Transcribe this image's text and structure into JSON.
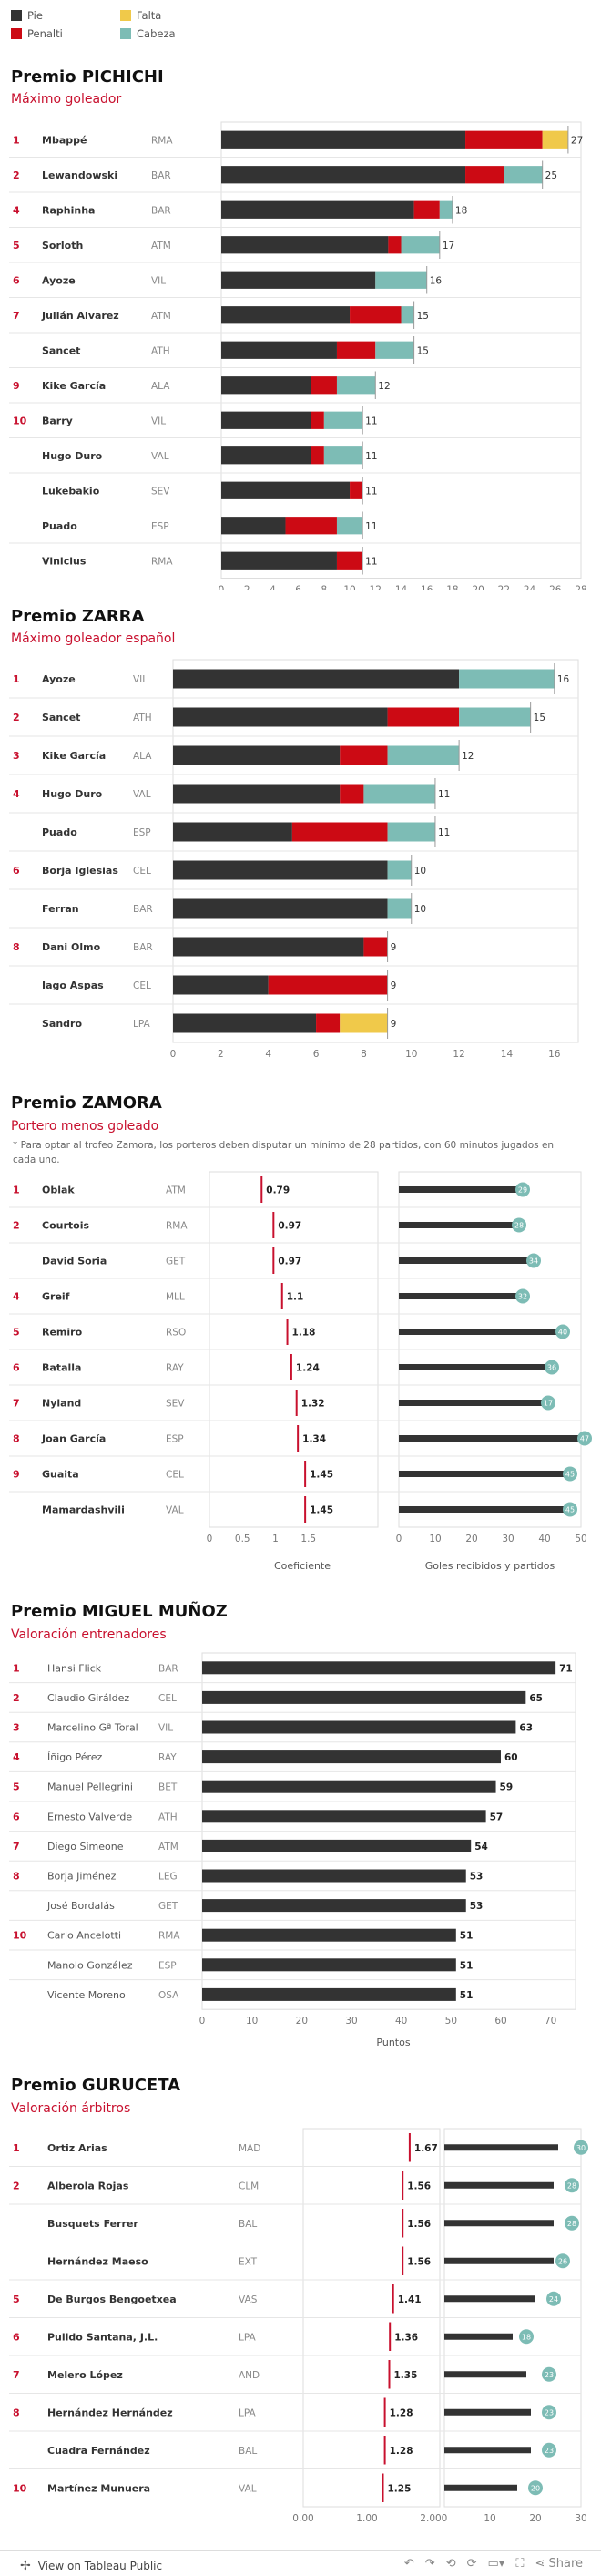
{
  "legend": {
    "items": [
      {
        "label": "Pie",
        "color": "#333333"
      },
      {
        "label": "Falta",
        "color": "#f0c94a"
      },
      {
        "label": "Penalti",
        "color": "#cc0a14"
      },
      {
        "label": "Cabeza",
        "color": "#7dbcb5"
      }
    ]
  },
  "sections": {
    "pichichi": {
      "title": "Premio PICHICHI",
      "subtitle": "Máximo goleador"
    },
    "zarra": {
      "title": "Premio ZARRA",
      "subtitle": "Máximo goleador español"
    },
    "zamora": {
      "title": "Premio ZAMORA",
      "subtitle": "Portero menos goleado",
      "note": "* Para optar al trofeo Zamora, los porteros deben disputar un mínimo de 28 partidos, con 60 minutos jugados en cada uno."
    },
    "munoz": {
      "title": "Premio MIGUEL MUÑOZ",
      "subtitle": "Valoración entrenadores"
    },
    "guruceta": {
      "title": "Premio GURUCETA",
      "subtitle": "Valoración árbitros"
    }
  },
  "footer": {
    "label": "View on Tableau Public",
    "share": "Share"
  },
  "chart_data": [
    {
      "type": "bar",
      "id": "pichichi",
      "stacked": true,
      "series_names": [
        "Pie",
        "Cabeza",
        "Penalti",
        "Falta"
      ],
      "xlim": [
        0,
        28
      ],
      "ticks": [
        0,
        2,
        4,
        6,
        8,
        10,
        12,
        14,
        16,
        18,
        20,
        22,
        24,
        26,
        28
      ],
      "rows": [
        {
          "rank": "1",
          "name": "Mbappé",
          "team": "RMA",
          "pie": 19,
          "cabeza": 0,
          "penalti": 6,
          "falta": 2,
          "total": "27"
        },
        {
          "rank": "2",
          "name": "Lewandowski",
          "team": "BAR",
          "pie": 19,
          "cabeza": 3,
          "penalti": 3,
          "falta": 0,
          "total": "25"
        },
        {
          "rank": "4",
          "name": "Raphinha",
          "team": "BAR",
          "pie": 15,
          "cabeza": 1,
          "penalti": 2,
          "falta": 0,
          "total": "18"
        },
        {
          "rank": "5",
          "name": "Sorloth",
          "team": "ATM",
          "pie": 13,
          "cabeza": 3,
          "penalti": 1,
          "falta": 0,
          "total": "17"
        },
        {
          "rank": "6",
          "name": "Ayoze",
          "team": "VIL",
          "pie": 12,
          "cabeza": 4,
          "penalti": 0,
          "falta": 0,
          "total": "16"
        },
        {
          "rank": "7",
          "name": "Julián Alvarez",
          "team": "ATM",
          "pie": 10,
          "cabeza": 1,
          "penalti": 4,
          "falta": 0,
          "total": "15"
        },
        {
          "rank": "",
          "name": "Sancet",
          "team": "ATH",
          "pie": 9,
          "cabeza": 3,
          "penalti": 3,
          "falta": 0,
          "total": "15"
        },
        {
          "rank": "9",
          "name": "Kike García",
          "team": "ALA",
          "pie": 7,
          "cabeza": 3,
          "penalti": 2,
          "falta": 0,
          "total": "12"
        },
        {
          "rank": "10",
          "name": "Barry",
          "team": "VIL",
          "pie": 7,
          "cabeza": 3,
          "penalti": 1,
          "falta": 0,
          "total": "11"
        },
        {
          "rank": "",
          "name": "Hugo Duro",
          "team": "VAL",
          "pie": 7,
          "cabeza": 3,
          "penalti": 1,
          "falta": 0,
          "total": "11"
        },
        {
          "rank": "",
          "name": "Lukebakio",
          "team": "SEV",
          "pie": 10,
          "cabeza": 0,
          "penalti": 1,
          "falta": 0,
          "total": "11"
        },
        {
          "rank": "",
          "name": "Puado",
          "team": "ESP",
          "pie": 5,
          "cabeza": 2,
          "penalti": 4,
          "falta": 0,
          "total": "11"
        },
        {
          "rank": "",
          "name": "Vinicius",
          "team": "RMA",
          "pie": 9,
          "cabeza": 0,
          "penalti": 2,
          "falta": 0,
          "total": "11"
        }
      ]
    },
    {
      "type": "bar",
      "id": "zarra",
      "stacked": true,
      "series_names": [
        "Pie",
        "Cabeza",
        "Penalti",
        "Falta"
      ],
      "xlim": [
        0,
        17
      ],
      "ticks": [
        0,
        2,
        4,
        6,
        8,
        10,
        12,
        14,
        16
      ],
      "rows": [
        {
          "rank": "1",
          "name": "Ayoze",
          "team": "VIL",
          "pie": 12,
          "cabeza": 4,
          "penalti": 0,
          "falta": 0,
          "total": "16"
        },
        {
          "rank": "2",
          "name": "Sancet",
          "team": "ATH",
          "pie": 9,
          "cabeza": 3,
          "penalti": 3,
          "falta": 0,
          "total": "15"
        },
        {
          "rank": "3",
          "name": "Kike García",
          "team": "ALA",
          "pie": 7,
          "cabeza": 3,
          "penalti": 2,
          "falta": 0,
          "total": "12"
        },
        {
          "rank": "4",
          "name": "Hugo Duro",
          "team": "VAL",
          "pie": 7,
          "cabeza": 3,
          "penalti": 1,
          "falta": 0,
          "total": "11"
        },
        {
          "rank": "",
          "name": "Puado",
          "team": "ESP",
          "pie": 5,
          "cabeza": 2,
          "penalti": 4,
          "falta": 0,
          "total": "11"
        },
        {
          "rank": "6",
          "name": "Borja Iglesias",
          "team": "CEL",
          "pie": 9,
          "cabeza": 1,
          "penalti": 0,
          "falta": 0,
          "total": "10"
        },
        {
          "rank": "",
          "name": "Ferran",
          "team": "BAR",
          "pie": 9,
          "cabeza": 1,
          "penalti": 0,
          "falta": 0,
          "total": "10"
        },
        {
          "rank": "8",
          "name": "Dani Olmo",
          "team": "BAR",
          "pie": 8,
          "cabeza": 0,
          "penalti": 1,
          "falta": 0,
          "total": "9"
        },
        {
          "rank": "",
          "name": "Iago Aspas",
          "team": "CEL",
          "pie": 4,
          "cabeza": 0,
          "penalti": 5,
          "falta": 0,
          "total": "9"
        },
        {
          "rank": "",
          "name": "Sandro",
          "team": "LPA",
          "pie": 6,
          "cabeza": 0,
          "penalti": 1,
          "falta": 2,
          "total": "9"
        }
      ]
    },
    {
      "type": "bar",
      "id": "zamora",
      "xlabel": "Coeficiente",
      "xlabel2": "Goles recibidos y partidos",
      "xlim": [
        0,
        2
      ],
      "ticks": [
        "0",
        "0.5",
        "1",
        "1.5"
      ],
      "ticks_values": [
        0,
        0.5,
        1,
        1.5
      ],
      "xlim2": [
        0,
        50
      ],
      "ticks2": [
        0,
        10,
        20,
        30,
        40,
        50
      ],
      "rows": [
        {
          "rank": "1",
          "name": "Oblak",
          "team": "ATM",
          "coef": 0.79,
          "coef_label": "0.79",
          "goles": 34,
          "partidos": "29"
        },
        {
          "rank": "2",
          "name": "Courtois",
          "team": "RMA",
          "coef": 0.97,
          "coef_label": "0.97",
          "goles": 33,
          "partidos": "28"
        },
        {
          "rank": "",
          "name": "David Soria",
          "team": "GET",
          "coef": 0.97,
          "coef_label": "0.97",
          "goles": 37,
          "partidos": "34"
        },
        {
          "rank": "4",
          "name": "Greif",
          "team": "MLL",
          "coef": 1.1,
          "coef_label": "1.1",
          "goles": 34,
          "partidos": "32"
        },
        {
          "rank": "5",
          "name": "Remiro",
          "team": "RSO",
          "coef": 1.18,
          "coef_label": "1.18",
          "goles": 45,
          "partidos": "40"
        },
        {
          "rank": "6",
          "name": "Batalla",
          "team": "RAY",
          "coef": 1.24,
          "coef_label": "1.24",
          "goles": 42,
          "partidos": "36"
        },
        {
          "rank": "7",
          "name": "Nyland",
          "team": "SEV",
          "coef": 1.32,
          "coef_label": "1.32",
          "goles": 41,
          "partidos": "17"
        },
        {
          "rank": "8",
          "name": "Joan García",
          "team": "ESP",
          "coef": 1.34,
          "coef_label": "1.34",
          "goles": 51,
          "partidos": "47"
        },
        {
          "rank": "9",
          "name": "Guaita",
          "team": "CEL",
          "coef": 1.45,
          "coef_label": "1.45",
          "goles": 47,
          "partidos": "45"
        },
        {
          "rank": "",
          "name": "Mamardashvili",
          "team": "VAL",
          "coef": 1.45,
          "coef_label": "1.45",
          "goles": 47,
          "partidos": "45"
        }
      ]
    },
    {
      "type": "bar",
      "id": "munoz",
      "xlabel": "Puntos",
      "xlim": [
        0,
        75
      ],
      "ticks": [
        0,
        10,
        20,
        30,
        40,
        50,
        60,
        70
      ],
      "rows": [
        {
          "rank": "1",
          "name": "Hansi Flick",
          "team": "BAR",
          "value": 71,
          "label": "71"
        },
        {
          "rank": "2",
          "name": "Claudio Giráldez",
          "team": "CEL",
          "value": 65,
          "label": "65"
        },
        {
          "rank": "3",
          "name": "Marcelino Gª Toral",
          "team": "VIL",
          "value": 63,
          "label": "63"
        },
        {
          "rank": "4",
          "name": "Íñigo Pérez",
          "team": "RAY",
          "value": 60,
          "label": "60"
        },
        {
          "rank": "5",
          "name": "Manuel Pellegrini",
          "team": "BET",
          "value": 59,
          "label": "59"
        },
        {
          "rank": "6",
          "name": "Ernesto Valverde",
          "team": "ATH",
          "value": 57,
          "label": "57"
        },
        {
          "rank": "7",
          "name": "Diego Simeone",
          "team": "ATM",
          "value": 54,
          "label": "54"
        },
        {
          "rank": "8",
          "name": "Borja Jiménez",
          "team": "LEG",
          "value": 53,
          "label": "53"
        },
        {
          "rank": "",
          "name": "José Bordalás",
          "team": "GET",
          "value": 53,
          "label": "53"
        },
        {
          "rank": "10",
          "name": "Carlo Ancelotti",
          "team": "RMA",
          "value": 51,
          "label": "51"
        },
        {
          "rank": "",
          "name": "Manolo González",
          "team": "ESP",
          "value": 51,
          "label": "51"
        },
        {
          "rank": "",
          "name": "Vicente Moreno",
          "team": "OSA",
          "value": 51,
          "label": "51"
        }
      ]
    },
    {
      "type": "bar",
      "id": "guruceta",
      "xlim": [
        0,
        2
      ],
      "ticks": [
        "0.00",
        "1.00",
        "2.00"
      ],
      "ticks_values": [
        0,
        1,
        2
      ],
      "xlim2": [
        0,
        30
      ],
      "ticks2": [
        0,
        10,
        20,
        30
      ],
      "rows": [
        {
          "rank": "1",
          "name": "Ortiz Arias",
          "team": "MAD",
          "coef": 1.67,
          "coef_label": "1.67",
          "valor": 25,
          "partidos": "30"
        },
        {
          "rank": "2",
          "name": "Alberola Rojas",
          "team": "CLM",
          "coef": 1.56,
          "coef_label": "1.56",
          "valor": 24,
          "partidos": "28"
        },
        {
          "rank": "",
          "name": "Busquets Ferrer",
          "team": "BAL",
          "coef": 1.56,
          "coef_label": "1.56",
          "valor": 24,
          "partidos": "28"
        },
        {
          "rank": "",
          "name": "Hernández Maeso",
          "team": "EXT",
          "coef": 1.56,
          "coef_label": "1.56",
          "valor": 24,
          "partidos": "26"
        },
        {
          "rank": "5",
          "name": "De Burgos Bengoetxea",
          "team": "VAS",
          "coef": 1.41,
          "coef_label": "1.41",
          "valor": 20,
          "partidos": "24"
        },
        {
          "rank": "6",
          "name": "Pulido Santana, J.L.",
          "team": "LPA",
          "coef": 1.36,
          "coef_label": "1.36",
          "valor": 15,
          "partidos": "18"
        },
        {
          "rank": "7",
          "name": "Melero López",
          "team": "AND",
          "coef": 1.35,
          "coef_label": "1.35",
          "valor": 18,
          "partidos": "23"
        },
        {
          "rank": "8",
          "name": "Hernández Hernández",
          "team": "LPA",
          "coef": 1.28,
          "coef_label": "1.28",
          "valor": 19,
          "partidos": "23"
        },
        {
          "rank": "",
          "name": "Cuadra Fernández",
          "team": "BAL",
          "coef": 1.28,
          "coef_label": "1.28",
          "valor": 19,
          "partidos": "23"
        },
        {
          "rank": "10",
          "name": "Martínez Munuera",
          "team": "VAL",
          "coef": 1.25,
          "coef_label": "1.25",
          "valor": 16,
          "partidos": "20"
        }
      ]
    }
  ]
}
